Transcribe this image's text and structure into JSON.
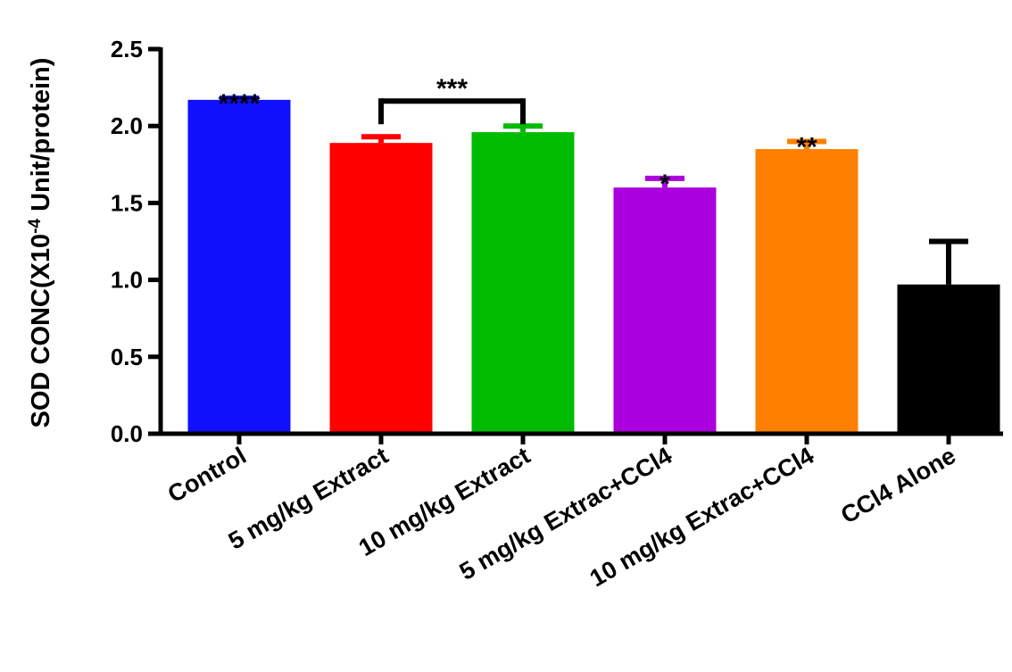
{
  "chart_data": {
    "type": "bar",
    "title": "",
    "xlabel": "",
    "ylabel": {
      "prefix": "SOD CONC(X10",
      "exponent": "-4",
      "suffix": " Unit/protein)"
    },
    "ylim": [
      0,
      2.5
    ],
    "yticks": [
      "0.0",
      "0.5",
      "1.0",
      "1.5",
      "2.0",
      "2.5"
    ],
    "categories": [
      "Control",
      "5 mg/kg Extract",
      "10 mg/kg Extract",
      "5 mg/kg Extrac+CCl4",
      "10 mg/kg Extrac+CCl4",
      "CCl4 Alone"
    ],
    "values": [
      2.17,
      1.89,
      1.96,
      1.6,
      1.85,
      0.97
    ],
    "errors": [
      0.01,
      0.04,
      0.04,
      0.06,
      0.05,
      0.28
    ],
    "colors": [
      "#1010ff",
      "#ff0000",
      "#00bb00",
      "#aa00dd",
      "#ff8000",
      "#000000"
    ],
    "significance": [
      "****",
      "",
      "",
      "*",
      "**",
      ""
    ],
    "bracket": {
      "from": 1,
      "to": 2,
      "label": "***"
    },
    "grid": false,
    "legend": "none"
  }
}
